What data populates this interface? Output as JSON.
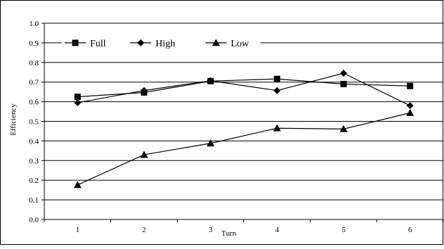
{
  "chart_data": {
    "type": "line",
    "title": "",
    "xlabel": "Turn",
    "ylabel": "Efficiency",
    "categories": [
      "1",
      "2",
      "3",
      "4",
      "5",
      "6"
    ],
    "ylim": [
      0,
      1.0
    ],
    "yticks": [
      "0.0",
      "0.1",
      "0.2",
      "0.3",
      "0.4",
      "0.5",
      "0.6",
      "0.7",
      "0.8",
      "0.9",
      "1.0"
    ],
    "grid": true,
    "legend_position": "top",
    "series": [
      {
        "name": "Full",
        "marker": "square",
        "values": [
          0.625,
          0.647,
          0.705,
          0.716,
          0.69,
          0.68
        ]
      },
      {
        "name": "High",
        "marker": "diamond",
        "values": [
          0.595,
          0.657,
          0.707,
          0.657,
          0.745,
          0.58
        ]
      },
      {
        "name": "Low",
        "marker": "triangle",
        "values": [
          0.176,
          0.33,
          0.388,
          0.465,
          0.461,
          0.543
        ]
      }
    ],
    "line_color": "#000000",
    "grid_color": "#000000"
  }
}
